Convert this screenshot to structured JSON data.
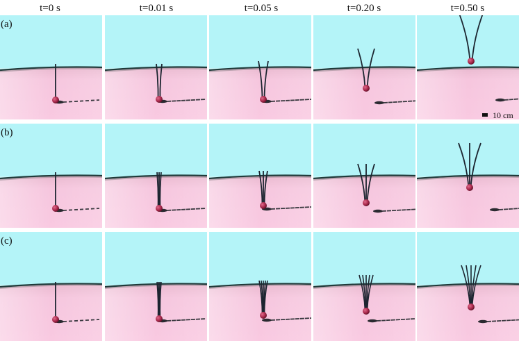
{
  "column_headers": [
    "t=0 s",
    "t=0.01 s",
    "t=0.05 s",
    "t=0.20 s",
    "t=0.50 s"
  ],
  "row_labels": [
    "(a)",
    "(b)",
    "(c)"
  ],
  "scale_bar": "10 cm"
}
